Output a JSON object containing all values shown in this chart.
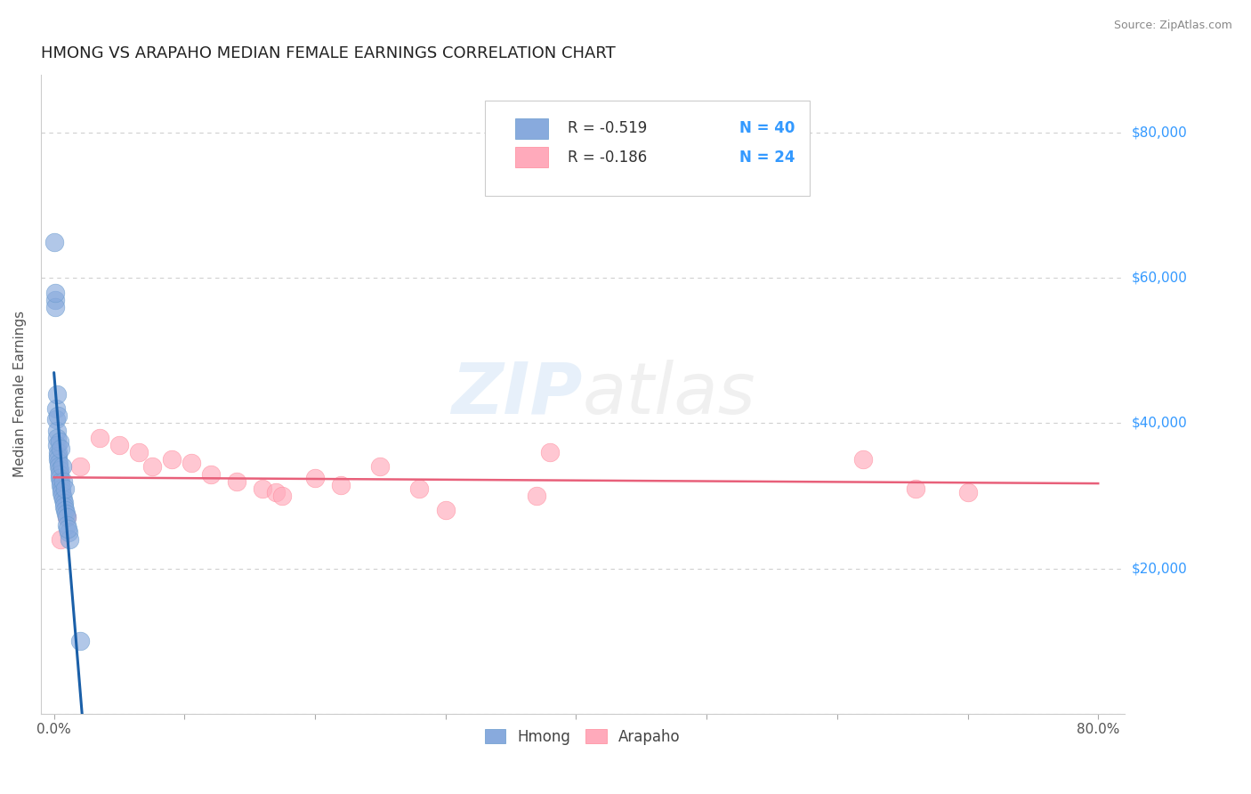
{
  "title": "HMONG VS ARAPAHO MEDIAN FEMALE EARNINGS CORRELATION CHART",
  "source": "Source: ZipAtlas.com",
  "ylabel": "Median Female Earnings",
  "x_ticks": [
    0.0,
    10.0,
    20.0,
    30.0,
    40.0,
    50.0,
    60.0,
    70.0,
    80.0
  ],
  "x_tick_labels_show": [
    "0.0%",
    "",
    "",
    "",
    "",
    "",
    "",
    "",
    "80.0%"
  ],
  "y_ticks": [
    0,
    20000,
    40000,
    60000,
    80000
  ],
  "y_tick_labels": [
    "",
    "$20,000",
    "$40,000",
    "$60,000",
    "$80,000"
  ],
  "hmong_color": "#88aadd",
  "hmong_edge_color": "#6699cc",
  "arapaho_color": "#ffaabb",
  "arapaho_edge_color": "#ff8899",
  "hmong_line_color": "#1a5fa8",
  "arapaho_line_color": "#e8607a",
  "background_color": "#ffffff",
  "grid_color": "#bbbbbb",
  "legend_R_color": "#333333",
  "legend_N_color": "#3399ff",
  "legend_R_hmong": "R = -0.519",
  "legend_N_hmong": "N = 40",
  "legend_R_arapaho": "R = -0.186",
  "legend_N_arapaho": "N = 24",
  "title_color": "#222222",
  "title_fontsize": 13,
  "source_color": "#888888",
  "ytick_label_color": "#3399ff",
  "hmong_x": [
    0.05,
    0.08,
    0.1,
    0.15,
    0.18,
    0.2,
    0.22,
    0.25,
    0.28,
    0.3,
    0.32,
    0.35,
    0.38,
    0.4,
    0.42,
    0.45,
    0.48,
    0.5,
    0.55,
    0.6,
    0.65,
    0.7,
    0.75,
    0.8,
    0.85,
    0.9,
    0.95,
    1.0,
    1.1,
    1.2,
    0.12,
    0.26,
    0.33,
    0.44,
    0.52,
    0.62,
    0.72,
    0.82,
    1.05,
    2.0
  ],
  "hmong_y": [
    65000,
    57000,
    56000,
    42000,
    40500,
    39000,
    38000,
    37000,
    36000,
    35500,
    35000,
    34500,
    34000,
    33500,
    33000,
    32500,
    32000,
    31500,
    31000,
    30500,
    30000,
    29500,
    29000,
    28500,
    28000,
    27500,
    27000,
    26000,
    25000,
    24000,
    58000,
    44000,
    41000,
    37500,
    36500,
    34000,
    32000,
    31000,
    25500,
    10000
  ],
  "arapaho_x": [
    0.5,
    1.0,
    2.0,
    3.5,
    5.0,
    6.5,
    7.5,
    9.0,
    10.5,
    12.0,
    14.0,
    16.0,
    17.0,
    17.5,
    20.0,
    22.0,
    25.0,
    28.0,
    30.0,
    37.0,
    38.0,
    62.0,
    66.0,
    70.0
  ],
  "arapaho_y": [
    24000,
    27000,
    34000,
    38000,
    37000,
    36000,
    34000,
    35000,
    34500,
    33000,
    32000,
    31000,
    30500,
    30000,
    32500,
    31500,
    34000,
    31000,
    28000,
    30000,
    36000,
    35000,
    31000,
    30500
  ],
  "xlim": [
    -1.0,
    82.0
  ],
  "ylim": [
    0,
    88000
  ],
  "hmong_line_x": [
    0.0,
    2.5
  ],
  "arapaho_line_x": [
    0.0,
    80.0
  ]
}
